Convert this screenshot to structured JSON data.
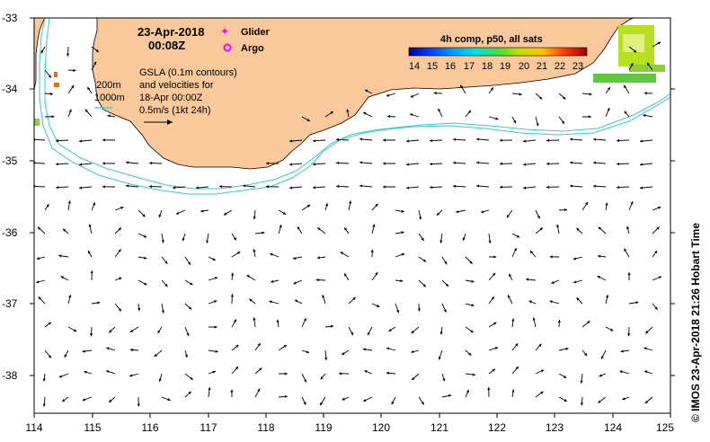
{
  "map": {
    "date": "23-Apr-2018",
    "time": "00:08Z",
    "legend_glider": "Glider",
    "legend_argo": "Argo",
    "colorbar_title": "4h comp, p50, all sats",
    "colorbar_ticks": [
      "14",
      "15",
      "16",
      "17",
      "18",
      "19",
      "20",
      "21",
      "22",
      "23"
    ],
    "annotation_lines": [
      "GSLA (0.1m contours)",
      "and velocities for",
      "18-Apr 00:00Z",
      "0.5m/s (1kt 24h)"
    ],
    "isobath_200": "200m",
    "isobath_1000": "1000m",
    "credit": "© IMOS 23-Apr-2018 21:26 Hobart Time",
    "x_ticks": [
      "114",
      "115",
      "116",
      "117",
      "118",
      "119",
      "120",
      "121",
      "122",
      "123",
      "124",
      "125"
    ],
    "y_ticks": [
      "-33",
      "-34",
      "-35",
      "-36",
      "-37",
      "-38"
    ],
    "colors": {
      "land": "#f9c89b",
      "isobath": "#33cccc",
      "glider": "#ff00ff",
      "argo": "#ff00ff"
    }
  }
}
